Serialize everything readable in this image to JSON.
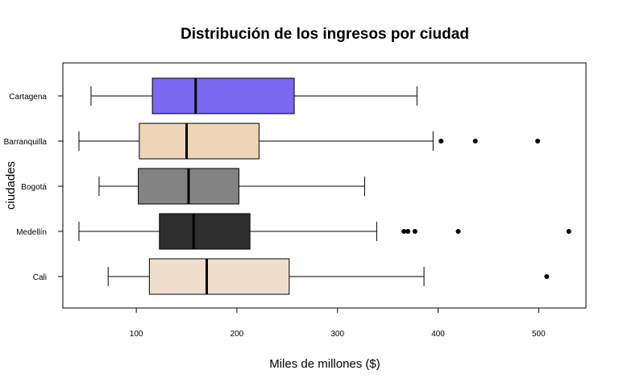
{
  "chart_data": {
    "type": "boxplot",
    "orientation": "horizontal",
    "title": "Distribución de los ingresos por ciudad",
    "xlabel": "Miles de millones ($)",
    "ylabel": "ciudades",
    "xlim": [
      27,
      547
    ],
    "xticks": [
      100,
      200,
      300,
      400,
      500
    ],
    "grid": false,
    "legend": "none",
    "categories": [
      "Cartagena",
      "Barranquilla",
      "Bogotá",
      "Medellín",
      "Cali"
    ],
    "boxes": [
      {
        "name": "Cartagena",
        "whisker_low": 55,
        "q1": 116,
        "median": 159,
        "q3": 257,
        "whisker_high": 379,
        "outliers": [],
        "color": "#7B68EE"
      },
      {
        "name": "Barranquilla",
        "whisker_low": 43,
        "q1": 103,
        "median": 150,
        "q3": 222,
        "whisker_high": 395,
        "outliers": [
          403,
          437,
          499
        ],
        "color": "#EED5B7"
      },
      {
        "name": "Bogotá",
        "whisker_low": 63,
        "q1": 102,
        "median": 152,
        "q3": 202,
        "whisker_high": 327,
        "outliers": [],
        "color": "#838383"
      },
      {
        "name": "Medellín",
        "whisker_low": 43,
        "q1": 123,
        "median": 157,
        "q3": 213,
        "whisker_high": 339,
        "outliers": [
          366,
          370,
          377,
          420,
          530
        ],
        "color": "#2E2E2E"
      },
      {
        "name": "Cali",
        "whisker_low": 72,
        "q1": 113,
        "median": 170,
        "q3": 252,
        "whisker_high": 386,
        "outliers": [
          508
        ],
        "color": "#EEDFCC"
      }
    ]
  }
}
